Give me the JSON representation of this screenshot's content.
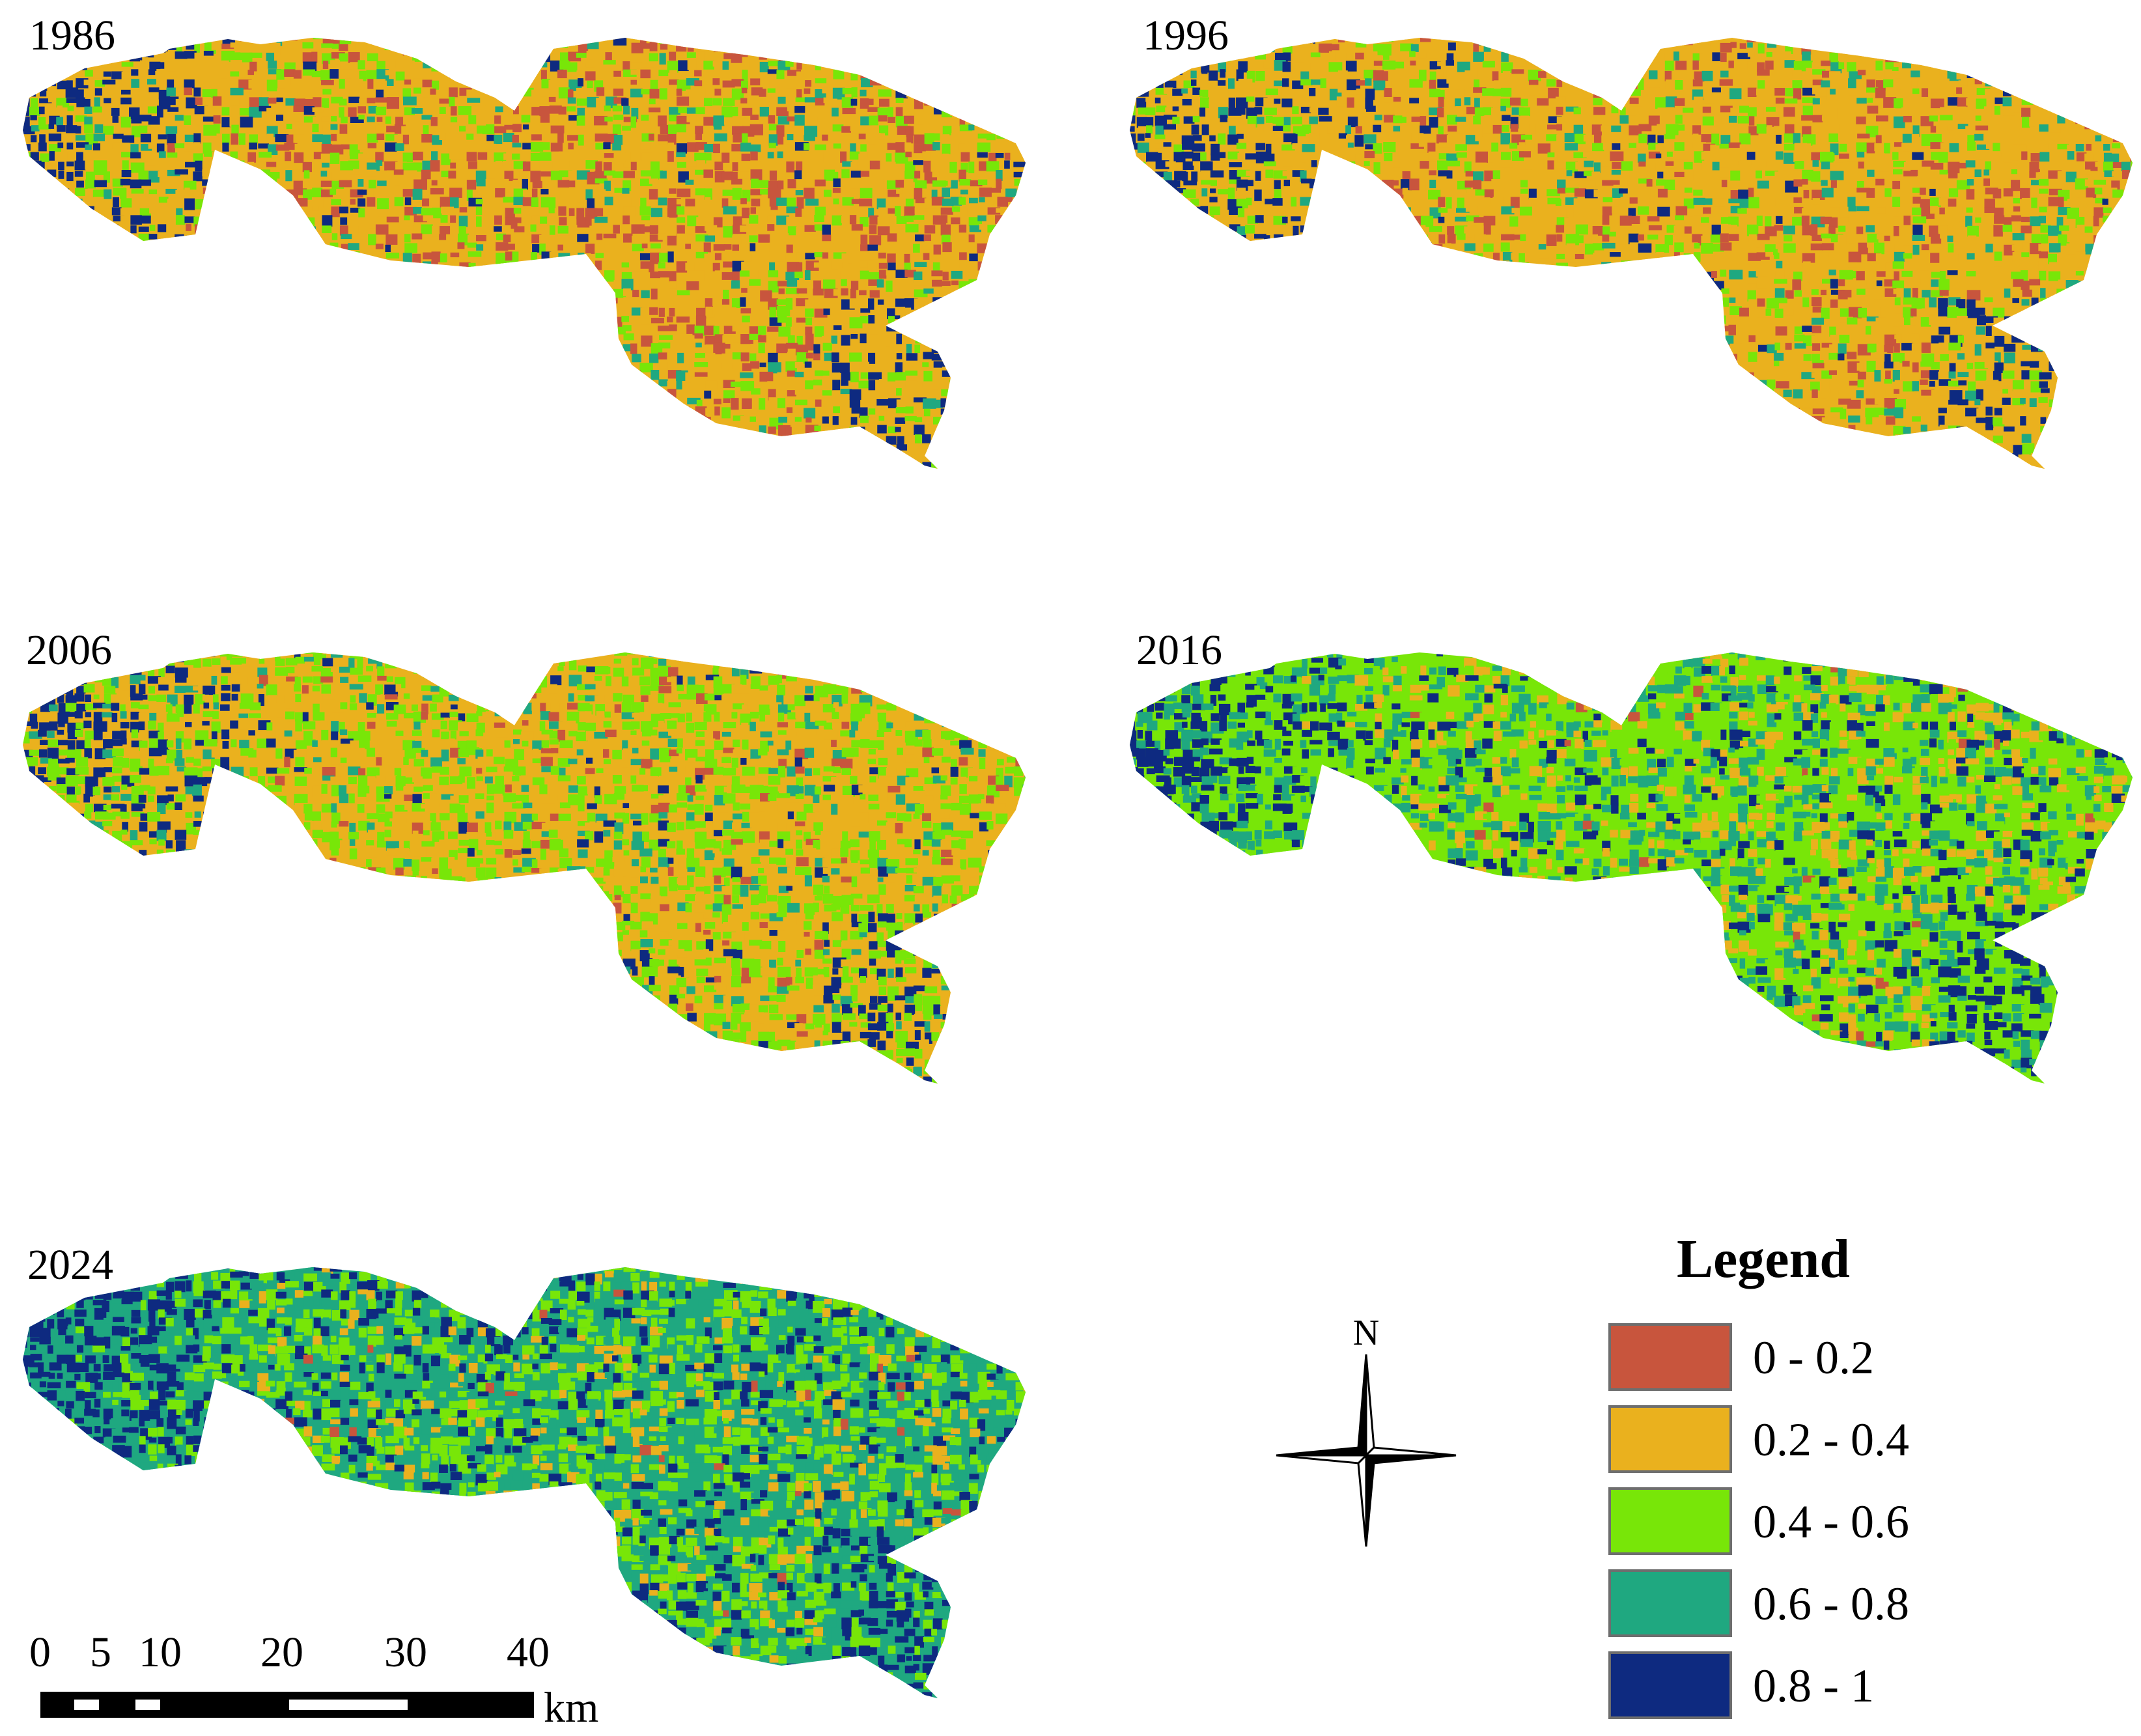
{
  "colors": {
    "class1": "#c8553d",
    "class2": "#eab11e",
    "class3": "#78e608",
    "class4": "#1fa880",
    "class5": "#0e2a80"
  },
  "panels": [
    {
      "year": "1986",
      "mix": [
        0.22,
        0.52,
        0.16,
        0.07,
        0.03
      ]
    },
    {
      "year": "1996",
      "mix": [
        0.15,
        0.58,
        0.16,
        0.07,
        0.04
      ]
    },
    {
      "year": "2006",
      "mix": [
        0.05,
        0.48,
        0.36,
        0.08,
        0.03
      ]
    },
    {
      "year": "2016",
      "mix": [
        0.01,
        0.18,
        0.44,
        0.25,
        0.12
      ]
    },
    {
      "year": "2024",
      "mix": [
        0.01,
        0.1,
        0.36,
        0.38,
        0.15
      ]
    }
  ],
  "legend": {
    "title": "Legend",
    "items": [
      {
        "label": "0 - 0.2",
        "color": "#c8553d"
      },
      {
        "label": "0.2 - 0.4",
        "color": "#eab11e"
      },
      {
        "label": "0.4 - 0.6",
        "color": "#78e608"
      },
      {
        "label": "0.6 - 0.8",
        "color": "#1fa880"
      },
      {
        "label": "0.8 - 1",
        "color": "#0e2a80"
      }
    ]
  },
  "north_arrow": {
    "label": "N",
    "icon": "compass-rose-icon"
  },
  "scale_bar": {
    "ticks": [
      "0",
      "5",
      "10",
      "20",
      "30",
      "40"
    ],
    "unit": "km"
  }
}
